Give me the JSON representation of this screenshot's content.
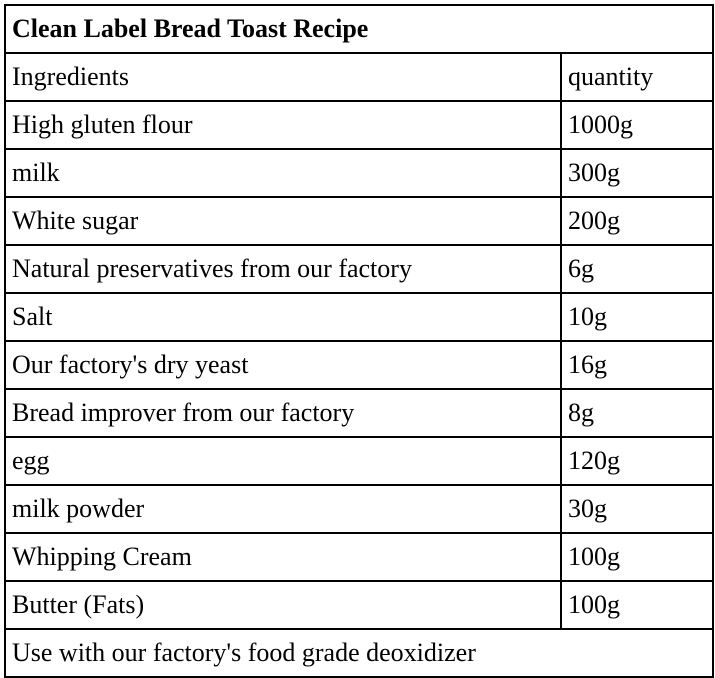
{
  "title": "Clean Label Bread Toast Recipe",
  "table": {
    "headers": [
      "Ingredients",
      "quantity"
    ],
    "rows": [
      [
        "High gluten flour",
        "1000g"
      ],
      [
        "milk",
        "300g"
      ],
      [
        "White sugar",
        "200g"
      ],
      [
        "Natural preservatives from our factory",
        "6g"
      ],
      [
        "Salt",
        "10g"
      ],
      [
        "Our factory's dry yeast",
        "16g"
      ],
      [
        "Bread improver from our factory",
        "8g"
      ],
      [
        "egg",
        "120g"
      ],
      [
        "milk powder",
        "30g"
      ],
      [
        "Whipping Cream",
        "100g"
      ],
      [
        "Butter (Fats)",
        "100g"
      ]
    ],
    "footer": "Use with our factory's food grade deoxidizer"
  },
  "colors": {
    "border": "#000000",
    "background": "#ffffff",
    "text": "#000000"
  }
}
